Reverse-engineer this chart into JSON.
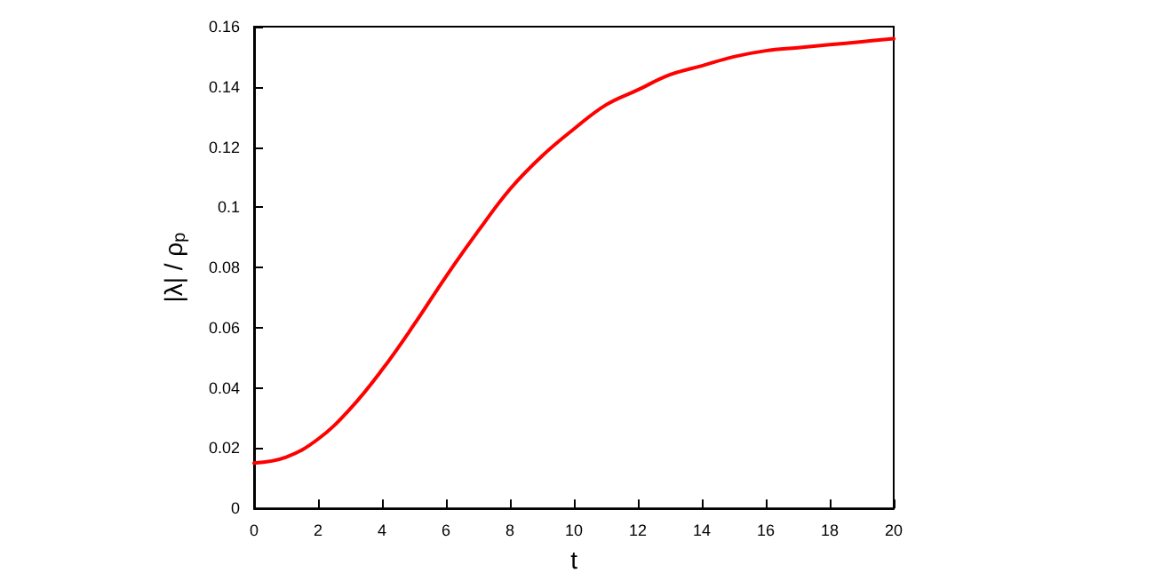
{
  "chart_data": {
    "type": "line",
    "xlabel": "t",
    "ylabel": "|λ| / ρ$_{p}$",
    "x": [
      0,
      1,
      2,
      3,
      4,
      5,
      6,
      7,
      8,
      9,
      10,
      11,
      12,
      13,
      14,
      15,
      16,
      17,
      18,
      19,
      20
    ],
    "series": [
      {
        "color": "#ff0000",
        "values": [
          0.015,
          0.017,
          0.023,
          0.033,
          0.046,
          0.061,
          0.077,
          0.092,
          0.106,
          0.117,
          0.126,
          0.134,
          0.139,
          0.144,
          0.147,
          0.15,
          0.152,
          0.153,
          0.154,
          0.155,
          0.156
        ]
      }
    ],
    "xlim": [
      0,
      20
    ],
    "xticks": [
      0,
      2,
      4,
      6,
      8,
      10,
      12,
      14,
      16,
      18,
      20
    ],
    "ylim": [
      0,
      0.16
    ],
    "yticks": [
      0,
      0.02,
      0.04,
      0.06,
      0.08,
      0.1,
      0.12,
      0.14,
      0.16
    ],
    "grid": false,
    "marker": "none",
    "line_style": "solid"
  }
}
